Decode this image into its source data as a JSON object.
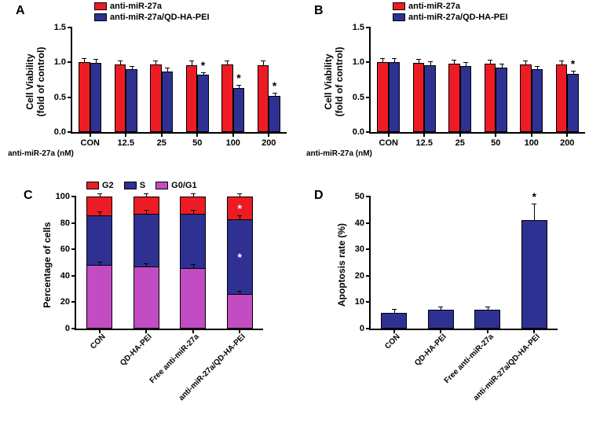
{
  "colors": {
    "red": "#ed1c24",
    "blue": "#2e3192",
    "purple": "#c24cc2",
    "black": "#000000",
    "white": "#ffffff"
  },
  "panelA": {
    "label": "A",
    "ylabel": "Cell Viability\n(fold of control)",
    "xlabel": "anti-miR-27a (nM)",
    "ylim": [
      0,
      1.5
    ],
    "ytick_step": 0.5,
    "categories": [
      "CON",
      "12.5",
      "25",
      "50",
      "100",
      "200"
    ],
    "legend": [
      {
        "label": "anti-miR-27a",
        "color": "#ed1c24"
      },
      {
        "label": "anti-miR-27a/QD-HA-PEI",
        "color": "#2e3192"
      }
    ],
    "series": [
      {
        "color": "#ed1c24",
        "values": [
          1.0,
          0.97,
          0.97,
          0.96,
          0.97,
          0.96
        ],
        "err": [
          0.05,
          0.05,
          0.05,
          0.05,
          0.05,
          0.05
        ]
      },
      {
        "color": "#2e3192",
        "values": [
          0.99,
          0.9,
          0.87,
          0.82,
          0.63,
          0.52
        ],
        "err": [
          0.05,
          0.04,
          0.04,
          0.03,
          0.03,
          0.03
        ],
        "sig": [
          false,
          false,
          false,
          true,
          true,
          true
        ]
      }
    ]
  },
  "panelB": {
    "label": "B",
    "ylabel": "Cell Viability\n(fold of control)",
    "xlabel": "anti-miR-27a (nM)",
    "ylim": [
      0,
      1.5
    ],
    "ytick_step": 0.5,
    "categories": [
      "CON",
      "12.5",
      "25",
      "50",
      "100",
      "200"
    ],
    "legend": [
      {
        "label": "anti-miR-27a",
        "color": "#ed1c24"
      },
      {
        "label": "anti-miR-27a/QD-HA-PEI",
        "color": "#2e3192"
      }
    ],
    "series": [
      {
        "color": "#ed1c24",
        "values": [
          1.0,
          0.99,
          0.98,
          0.98,
          0.97,
          0.97
        ],
        "err": [
          0.05,
          0.05,
          0.05,
          0.05,
          0.05,
          0.05
        ]
      },
      {
        "color": "#2e3192",
        "values": [
          1.0,
          0.96,
          0.95,
          0.93,
          0.9,
          0.83
        ],
        "err": [
          0.05,
          0.04,
          0.04,
          0.04,
          0.04,
          0.04
        ],
        "sig": [
          false,
          false,
          false,
          false,
          false,
          true
        ]
      }
    ]
  },
  "panelC": {
    "label": "C",
    "ylabel": "Percentage of cells",
    "ylim": [
      0,
      100
    ],
    "ytick_step": 20,
    "categories": [
      "CON",
      "QD-HA-PEI",
      "Free anti-miR-27a",
      "anti-miR-27a/QD-HA-PEI"
    ],
    "legend": [
      {
        "label": "G2",
        "color": "#ed1c24"
      },
      {
        "label": "S",
        "color": "#2e3192"
      },
      {
        "label": "G0/G1",
        "color": "#c24cc2"
      }
    ],
    "stacks": [
      {
        "g0g1": 48,
        "s": 38,
        "g2": 14
      },
      {
        "g0g1": 47,
        "s": 40,
        "g2": 13
      },
      {
        "g0g1": 46,
        "s": 41,
        "g2": 13
      },
      {
        "g0g1": 26,
        "s": 57,
        "g2": 17
      }
    ],
    "errs": [
      {
        "g0g1": 2,
        "s": 2,
        "g2": 2
      },
      {
        "g0g1": 2,
        "s": 2,
        "g2": 2
      },
      {
        "g0g1": 2,
        "s": 2,
        "g2": 2
      },
      {
        "g0g1": 2,
        "s": 2,
        "g2": 2
      }
    ],
    "sig_g2": [
      false,
      false,
      false,
      true
    ],
    "sig_s": [
      false,
      false,
      false,
      true
    ]
  },
  "panelD": {
    "label": "D",
    "ylabel": "Apoptosis rate (%)",
    "ylim": [
      0,
      50
    ],
    "ytick_step": 10,
    "categories": [
      "CON",
      "QD-HA-PEI",
      "Free anti-miR-27a",
      "anti-miR-27a/QD-HA-PEI"
    ],
    "color": "#2e3192",
    "values": [
      6,
      7,
      7,
      41
    ],
    "err": [
      1,
      1,
      1,
      6
    ],
    "sig": [
      false,
      false,
      false,
      true
    ]
  }
}
